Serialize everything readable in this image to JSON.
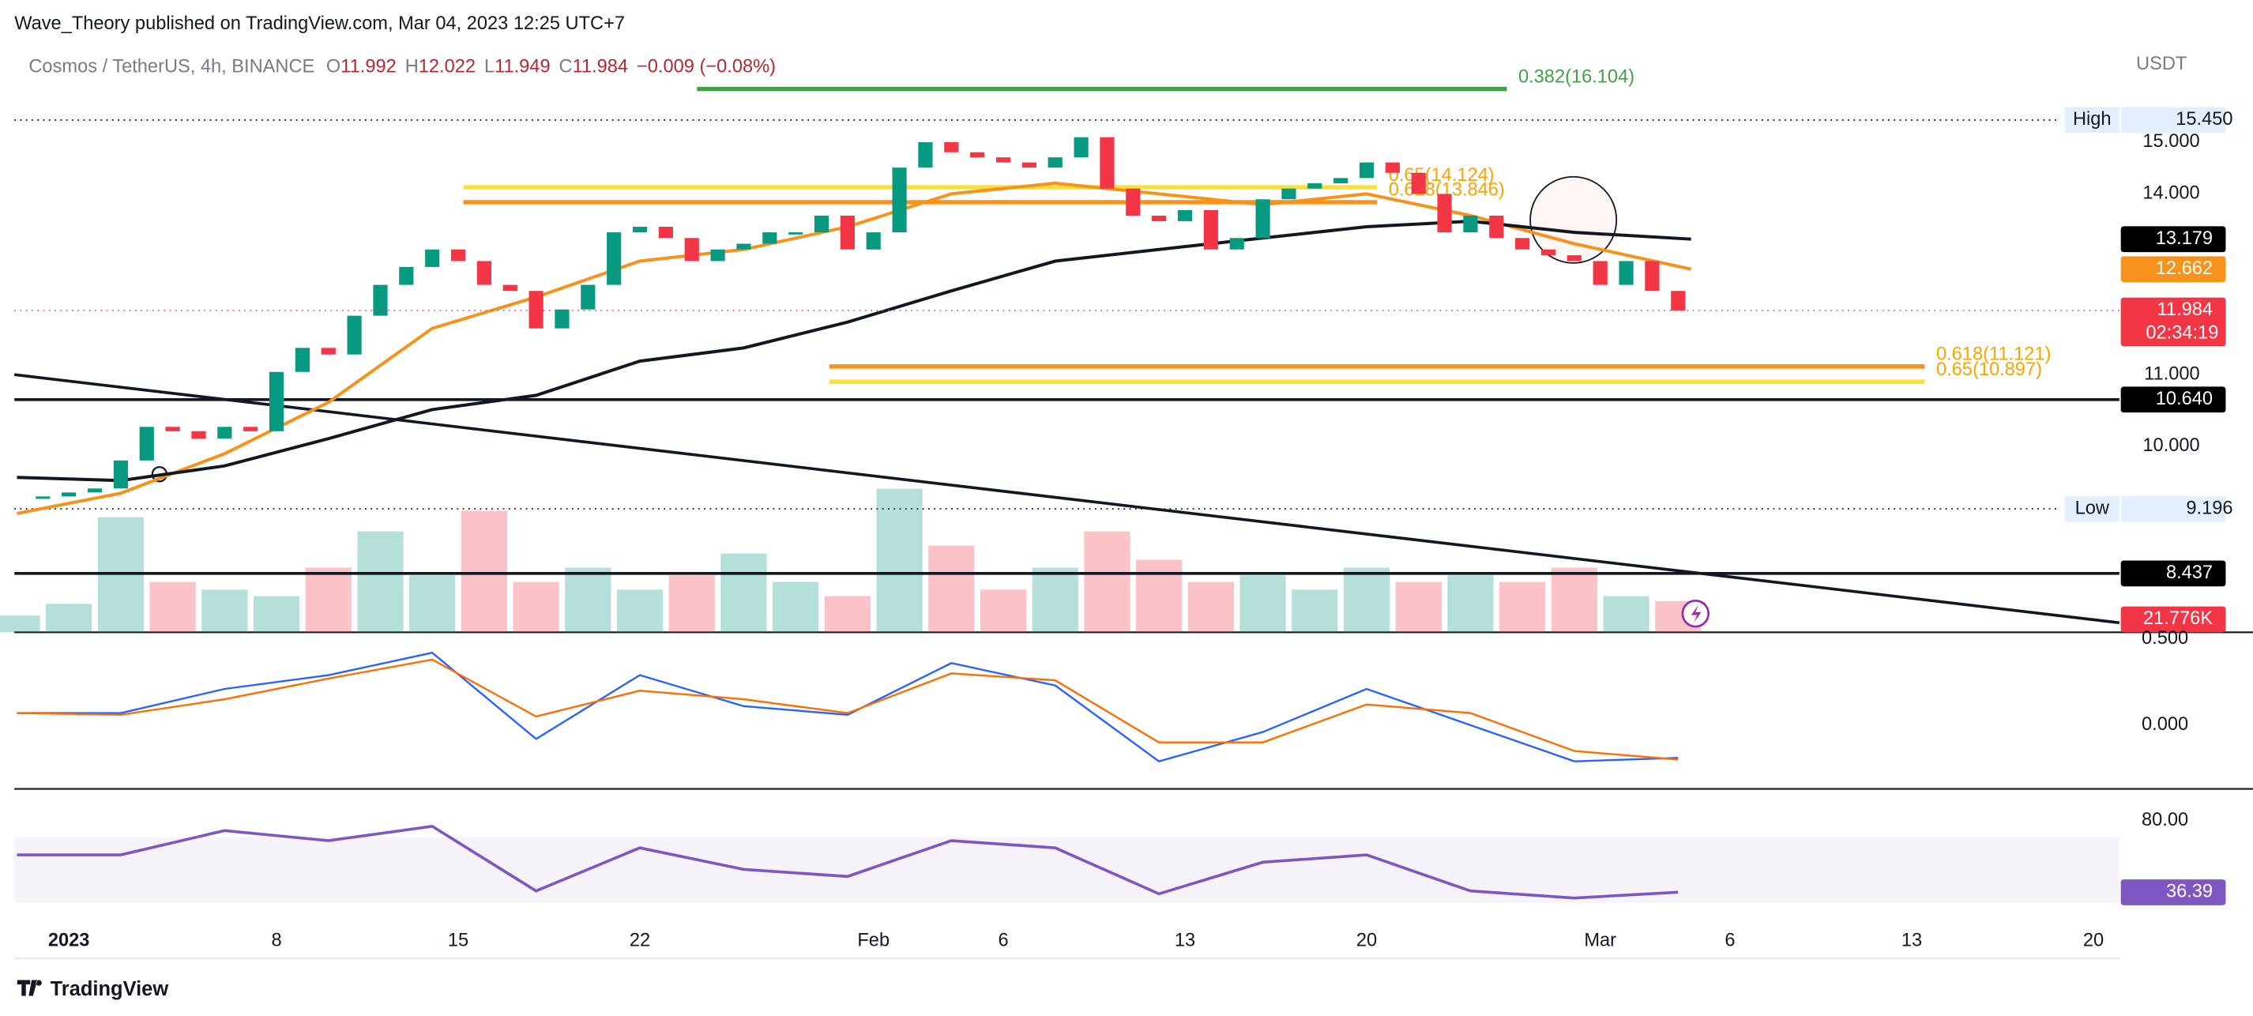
{
  "header": {
    "byline": "Wave_Theory published on TradingView.com, Mar 04, 2023 12:25 UTC+7"
  },
  "legend": {
    "symbol": "Cosmos / TetherUS, 4h, BINANCE",
    "o_label": "O",
    "open": 11.992,
    "h_label": "H",
    "high": 12.022,
    "l_label": "L",
    "low": 11.949,
    "c_label": "C",
    "close": 11.984,
    "change": "−0.009 (−0.08%)"
  },
  "footer": {
    "brand": "TradingView"
  },
  "chart": {
    "currency": "USDT",
    "log_scale": true,
    "xlim": [
      -2.1,
      79
    ],
    "ylim": [
      17.12,
      7.8
    ],
    "xticks": [
      {
        "value": 0,
        "label": "2023"
      },
      8,
      15,
      22,
      {
        "value": 31,
        "label": "Feb"
      },
      {
        "value": 36,
        "label": "6"
      },
      {
        "value": 43,
        "label": "13"
      },
      {
        "value": 50,
        "label": "20"
      },
      {
        "value": 59,
        "label": "Mar"
      },
      {
        "value": 64,
        "label": "6"
      },
      {
        "value": 71,
        "label": "13"
      },
      {
        "value": 78,
        "label": "20"
      }
    ],
    "yticks": [
      {
        "value": 15,
        "label": "15.000"
      },
      {
        "value": 14,
        "label": "14.000"
      },
      {
        "value": 11,
        "label": "11.000"
      },
      {
        "value": 10,
        "label": "10.000"
      }
    ],
    "price": {
      "up_color": "#089981",
      "down_color": "#f23645",
      "countdown": "02:34:19",
      "x": [
        -2,
        -1,
        0,
        1,
        2,
        3,
        4,
        5,
        6,
        7,
        8,
        9,
        10,
        11,
        12,
        13,
        14,
        15,
        16,
        17,
        18,
        19,
        20,
        21,
        22,
        23,
        24,
        25,
        26,
        27,
        28,
        29,
        30,
        31,
        32,
        33,
        34,
        35,
        36,
        37,
        38,
        39,
        40,
        41,
        42,
        43,
        44,
        45,
        46,
        47,
        48,
        49,
        50,
        51,
        52,
        53,
        54,
        55,
        56,
        57,
        58,
        59,
        60,
        61,
        62
      ],
      "close": [
        9.32,
        9.35,
        9.4,
        9.45,
        9.81,
        10.26,
        10.2,
        10.1,
        10.26,
        10.2,
        11.04,
        11.4,
        11.3,
        11.9,
        12.4,
        12.7,
        13.0,
        12.8,
        12.4,
        12.3,
        11.7,
        12.0,
        12.4,
        13.3,
        13.4,
        13.2,
        12.8,
        13.0,
        13.1,
        13.3,
        13.3,
        13.6,
        13.0,
        13.3,
        14.5,
        15.0,
        14.8,
        14.7,
        14.6,
        14.5,
        14.7,
        15.1,
        14.1,
        13.6,
        13.5,
        13.7,
        13.0,
        13.2,
        13.9,
        14.1,
        14.2,
        14.3,
        14.6,
        14.4,
        14.0,
        13.3,
        13.6,
        13.2,
        13.0,
        12.9,
        12.8,
        12.4,
        12.8,
        12.3,
        11.984
      ]
    },
    "moving_averages": [
      {
        "color": "#f7931a",
        "x": [
          -2,
          2,
          6,
          10,
          14,
          18,
          22,
          26,
          30,
          34,
          38,
          42,
          46,
          50,
          54,
          58,
          62.5
        ],
        "values": [
          9.14,
          9.39,
          9.9,
          10.6,
          11.7,
          12.2,
          12.8,
          13.0,
          13.4,
          14.0,
          14.2,
          14.0,
          13.8,
          14.0,
          13.6,
          13.1,
          12.662
        ]
      },
      {
        "color": "#131722",
        "x": [
          -2,
          2,
          6,
          10,
          14,
          18,
          22,
          26,
          30,
          34,
          38,
          42,
          46,
          50,
          54,
          58,
          62.5
        ],
        "values": [
          9.59,
          9.55,
          9.74,
          10.1,
          10.5,
          10.7,
          11.2,
          11.4,
          11.8,
          12.3,
          12.8,
          13.0,
          13.2,
          13.4,
          13.5,
          13.3,
          13.179
        ]
      }
    ],
    "fib_levels": [
      {
        "label": "0.382(16.104)",
        "price": 16.104,
        "from": 24.2,
        "to": 55.4,
        "color": "#43a047"
      },
      {
        "label": "0.65(14.124)",
        "price": 14.124,
        "from": 15.2,
        "to": 50.4,
        "color": "#f7e03c"
      },
      {
        "label": "0.618(13.846)",
        "price": 13.846,
        "from": 15.2,
        "to": 50.4,
        "color": "#f7931a"
      },
      {
        "label": "0.618(11.121)",
        "price": 11.121,
        "from": 29.3,
        "to": 71.5,
        "color": "#f7931a"
      },
      {
        "label": "0.65(10.897)",
        "price": 10.897,
        "from": 29.3,
        "to": 71.5,
        "color": "#f7e03c"
      }
    ],
    "horizontal_lines": [
      {
        "name": "High",
        "price": {
          "value": 15.45,
          "label": "15.450"
        },
        "style": "dotted"
      },
      {
        "price": {
          "value": 10.64,
          "label": "10.640"
        },
        "style": "solid"
      },
      {
        "name": "Low",
        "price": 9.196,
        "style": "dotted"
      },
      {
        "price": 8.437,
        "style": "solid"
      }
    ],
    "trendline": {
      "x": [
        -2.1,
        79
      ],
      "y": [
        11.0,
        7.9
      ]
    },
    "volume": {
      "last": {
        "value": 21.776,
        "label": "21.776K"
      },
      "x": [
        -2,
        0,
        2,
        4,
        6,
        8,
        10,
        12,
        14,
        16,
        18,
        20,
        22,
        24,
        26,
        28,
        30,
        32,
        34,
        36,
        38,
        40,
        42,
        44,
        46,
        48,
        50,
        52,
        54,
        56,
        58,
        60,
        62
      ],
      "values": [
        13,
        22,
        89,
        39,
        33,
        28,
        50,
        78,
        44,
        94,
        39,
        50,
        33,
        44,
        61,
        39,
        28,
        111,
        67,
        33,
        50,
        78,
        56,
        39,
        44,
        33,
        50,
        39,
        44,
        39,
        50,
        28,
        24
      ]
    },
    "macd": {
      "ylim": [
        -0.37,
        0.53
      ],
      "yticks": [
        {
          "value": 0.5,
          "label": "0.500"
        },
        {
          "value": 0,
          "label": "0.000"
        }
      ],
      "x": [
        -2,
        2,
        6,
        10,
        14,
        18,
        22,
        26,
        30,
        34,
        38,
        42,
        46,
        50,
        54,
        58,
        62
      ],
      "macd_color": "#2962ff",
      "signal_color": "#ff6d00",
      "macd": [
        0.07,
        0.07,
        0.21,
        0.29,
        0.42,
        -0.08,
        0.29,
        0.11,
        0.06,
        0.36,
        0.23,
        -0.21,
        -0.04,
        0.21,
        0,
        -0.21,
        -0.19
      ],
      "signal": [
        0.07,
        0.06,
        0.15,
        0.27,
        0.38,
        0.05,
        0.2,
        0.15,
        0.07,
        0.3,
        0.26,
        -0.1,
        -0.1,
        0.12,
        0.07,
        -0.15,
        -0.2
      ]
    },
    "rsi": {
      "ylim": [
        -3.8,
        98.3
      ],
      "band": [
        30,
        70
      ],
      "yticks": [
        {
          "value": 80,
          "label": "80.00"
        }
      ],
      "color": "#7e57c2",
      "x": [
        -2,
        2,
        6,
        10,
        14,
        18,
        22,
        26,
        30,
        34,
        38,
        42,
        46,
        50,
        54,
        58,
        62
      ],
      "values": [
        59.1,
        59.1,
        73.9,
        67.8,
        76.5,
        37.2,
        63.4,
        50.3,
        46,
        67.8,
        63.4,
        35.5,
        54.7,
        59.1,
        37.2,
        32.9,
        36.39
      ]
    }
  }
}
